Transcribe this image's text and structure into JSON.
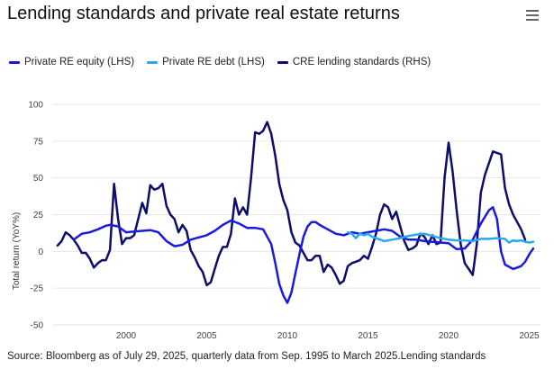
{
  "header": {
    "title": "Lending standards and private real estate returns",
    "menu_icon": "hamburger-menu-icon"
  },
  "legend": [
    {
      "label": "Private RE equity (LHS)",
      "color": "#1a1adb"
    },
    {
      "label": "Private RE debt (LHS)",
      "color": "#2aa8f0"
    },
    {
      "label": "CRE lending standards (RHS)",
      "color": "#0d0d6b"
    }
  ],
  "footer": {
    "source": "Source: Bloomberg as of July 29, 2025, quarterly data from Sep. 1995 to March 2025.Lending standards"
  },
  "chart_data": {
    "type": "line",
    "title": "Lending standards and private real estate returns",
    "xlabel": "",
    "ylabel": "Total return (YoY%)",
    "ylim": [
      -50,
      100
    ],
    "xlim": [
      1995.5,
      2025.5
    ],
    "yticks": [
      "100",
      "75",
      "50",
      "25",
      "0",
      "-25",
      "-50"
    ],
    "ytick_values": [
      100,
      75,
      50,
      25,
      0,
      -25,
      -50
    ],
    "xticks": [
      "2000",
      "2005",
      "2010",
      "2015",
      "2020",
      "2025"
    ],
    "xtick_values": [
      2000,
      2005,
      2010,
      2015,
      2020,
      2025
    ],
    "grid": true,
    "legend_position": "top-left",
    "series": [
      {
        "name": "Private RE equity (LHS)",
        "color": "#1a1adb",
        "points": [
          [
            1996.75,
            8
          ],
          [
            1997.0,
            10
          ],
          [
            1997.25,
            12
          ],
          [
            1997.75,
            13
          ],
          [
            1998.25,
            15
          ],
          [
            1998.75,
            17.5
          ],
          [
            1999.0,
            18
          ],
          [
            1999.5,
            17
          ],
          [
            2000.0,
            13
          ],
          [
            2000.5,
            13.5
          ],
          [
            2001.0,
            14
          ],
          [
            2001.5,
            14.5
          ],
          [
            2002.0,
            13
          ],
          [
            2002.5,
            7
          ],
          [
            2003.0,
            3.5
          ],
          [
            2003.5,
            4.5
          ],
          [
            2004.0,
            8
          ],
          [
            2004.5,
            9.5
          ],
          [
            2005.0,
            11
          ],
          [
            2005.5,
            14
          ],
          [
            2006.0,
            18
          ],
          [
            2006.5,
            21
          ],
          [
            2007.0,
            19
          ],
          [
            2007.5,
            16
          ],
          [
            2008.0,
            16
          ],
          [
            2008.5,
            15
          ],
          [
            2009.0,
            5
          ],
          [
            2009.25,
            -8
          ],
          [
            2009.5,
            -22
          ],
          [
            2009.75,
            -30
          ],
          [
            2010.0,
            -35
          ],
          [
            2010.25,
            -28
          ],
          [
            2010.5,
            -15
          ],
          [
            2010.75,
            -2
          ],
          [
            2011.0,
            10
          ],
          [
            2011.25,
            17
          ],
          [
            2011.5,
            20
          ],
          [
            2011.75,
            20
          ],
          [
            2012.0,
            18
          ],
          [
            2012.5,
            15
          ],
          [
            2013.0,
            12
          ],
          [
            2013.5,
            11
          ],
          [
            2014.0,
            13
          ],
          [
            2014.5,
            12
          ],
          [
            2015.0,
            13
          ],
          [
            2015.5,
            14
          ],
          [
            2016.0,
            15
          ],
          [
            2016.5,
            14
          ],
          [
            2017.0,
            10
          ],
          [
            2017.5,
            8
          ],
          [
            2018.0,
            8
          ],
          [
            2018.5,
            7
          ],
          [
            2019.0,
            6.5
          ],
          [
            2019.5,
            6
          ],
          [
            2020.0,
            5.5
          ],
          [
            2020.5,
            1.5
          ],
          [
            2021.0,
            2
          ],
          [
            2021.5,
            8
          ],
          [
            2022.0,
            19
          ],
          [
            2022.5,
            28
          ],
          [
            2022.75,
            30
          ],
          [
            2023.0,
            22
          ],
          [
            2023.25,
            0
          ],
          [
            2023.5,
            -9
          ],
          [
            2024.0,
            -12
          ],
          [
            2024.5,
            -10
          ],
          [
            2024.75,
            -7
          ],
          [
            2025.0,
            -2
          ],
          [
            2025.25,
            2
          ]
        ]
      },
      {
        "name": "Private RE debt (LHS)",
        "color": "#2aa8f0",
        "points": [
          [
            2013.75,
            13
          ],
          [
            2014.0,
            12
          ],
          [
            2014.25,
            9
          ],
          [
            2014.5,
            12
          ],
          [
            2014.75,
            11
          ],
          [
            2015.0,
            12
          ],
          [
            2015.25,
            10
          ],
          [
            2015.5,
            9
          ],
          [
            2016.0,
            7
          ],
          [
            2016.5,
            8
          ],
          [
            2017.0,
            9
          ],
          [
            2017.5,
            10.5
          ],
          [
            2018.0,
            11.5
          ],
          [
            2018.5,
            12
          ],
          [
            2019.0,
            10.5
          ],
          [
            2019.5,
            9
          ],
          [
            2020.0,
            8
          ],
          [
            2020.5,
            7.5
          ],
          [
            2021.0,
            7.5
          ],
          [
            2021.5,
            7
          ],
          [
            2022.0,
            8.5
          ],
          [
            2022.5,
            8.5
          ],
          [
            2023.0,
            9
          ],
          [
            2023.5,
            8.5
          ],
          [
            2023.75,
            6
          ],
          [
            2024.0,
            7.5
          ],
          [
            2024.25,
            7
          ],
          [
            2024.5,
            7.5
          ],
          [
            2024.75,
            6.5
          ],
          [
            2025.0,
            6
          ],
          [
            2025.25,
            6.5
          ]
        ]
      },
      {
        "name": "CRE lending standards (RHS)",
        "color": "#0d0d6b",
        "points": [
          [
            1995.75,
            4
          ],
          [
            1996.0,
            7
          ],
          [
            1996.25,
            13
          ],
          [
            1996.5,
            11
          ],
          [
            1996.75,
            8
          ],
          [
            1997.0,
            4
          ],
          [
            1997.25,
            -1
          ],
          [
            1997.5,
            -1
          ],
          [
            1997.75,
            -5
          ],
          [
            1998.0,
            -11
          ],
          [
            1998.25,
            -8
          ],
          [
            1998.5,
            -6
          ],
          [
            1998.75,
            -6
          ],
          [
            1999.0,
            1
          ],
          [
            1999.25,
            46
          ],
          [
            1999.5,
            22
          ],
          [
            1999.75,
            5
          ],
          [
            2000.0,
            9
          ],
          [
            2000.25,
            9
          ],
          [
            2000.5,
            11
          ],
          [
            2000.75,
            22
          ],
          [
            2001.0,
            33
          ],
          [
            2001.25,
            26
          ],
          [
            2001.5,
            45
          ],
          [
            2001.75,
            42
          ],
          [
            2002.0,
            43
          ],
          [
            2002.25,
            46
          ],
          [
            2002.5,
            31
          ],
          [
            2002.75,
            25
          ],
          [
            2003.0,
            22
          ],
          [
            2003.25,
            13
          ],
          [
            2003.5,
            18
          ],
          [
            2003.75,
            14
          ],
          [
            2004.0,
            1
          ],
          [
            2004.25,
            -4
          ],
          [
            2004.5,
            -10
          ],
          [
            2004.75,
            -14
          ],
          [
            2005.0,
            -23
          ],
          [
            2005.25,
            -21
          ],
          [
            2005.5,
            -12
          ],
          [
            2005.75,
            -3
          ],
          [
            2006.0,
            3
          ],
          [
            2006.25,
            3
          ],
          [
            2006.5,
            12
          ],
          [
            2006.75,
            36
          ],
          [
            2007.0,
            25
          ],
          [
            2007.25,
            30
          ],
          [
            2007.5,
            25
          ],
          [
            2007.75,
            50
          ],
          [
            2008.0,
            81
          ],
          [
            2008.25,
            80
          ],
          [
            2008.5,
            82
          ],
          [
            2008.75,
            88
          ],
          [
            2009.0,
            80
          ],
          [
            2009.25,
            65
          ],
          [
            2009.5,
            46
          ],
          [
            2009.75,
            35
          ],
          [
            2010.0,
            28
          ],
          [
            2010.25,
            13
          ],
          [
            2010.5,
            6
          ],
          [
            2010.75,
            4
          ],
          [
            2011.0,
            -1
          ],
          [
            2011.25,
            -6
          ],
          [
            2011.5,
            -6
          ],
          [
            2011.75,
            -3
          ],
          [
            2012.0,
            -3
          ],
          [
            2012.25,
            -14
          ],
          [
            2012.5,
            -9
          ],
          [
            2012.75,
            -11
          ],
          [
            2013.0,
            -16
          ],
          [
            2013.25,
            -22
          ],
          [
            2013.5,
            -20
          ],
          [
            2013.75,
            -10
          ],
          [
            2014.0,
            -8
          ],
          [
            2014.25,
            -7
          ],
          [
            2014.5,
            -6
          ],
          [
            2014.75,
            -3
          ],
          [
            2015.0,
            -5
          ],
          [
            2015.25,
            3
          ],
          [
            2015.5,
            12
          ],
          [
            2015.75,
            25
          ],
          [
            2016.0,
            32
          ],
          [
            2016.25,
            30
          ],
          [
            2016.5,
            22
          ],
          [
            2016.75,
            27
          ],
          [
            2017.0,
            17
          ],
          [
            2017.25,
            7
          ],
          [
            2017.5,
            1
          ],
          [
            2017.75,
            2
          ],
          [
            2018.0,
            4
          ],
          [
            2018.25,
            12
          ],
          [
            2018.5,
            10
          ],
          [
            2018.75,
            5
          ],
          [
            2019.0,
            11
          ],
          [
            2019.25,
            5
          ],
          [
            2019.5,
            6
          ],
          [
            2019.75,
            50
          ],
          [
            2020.0,
            74
          ],
          [
            2020.25,
            54
          ],
          [
            2020.5,
            28
          ],
          [
            2020.75,
            5
          ],
          [
            2021.0,
            -8
          ],
          [
            2021.25,
            -12
          ],
          [
            2021.5,
            -16
          ],
          [
            2021.75,
            5
          ],
          [
            2022.0,
            40
          ],
          [
            2022.25,
            52
          ],
          [
            2022.5,
            60
          ],
          [
            2022.75,
            68
          ],
          [
            2023.0,
            67
          ],
          [
            2023.25,
            66
          ],
          [
            2023.5,
            43
          ],
          [
            2023.75,
            32
          ],
          [
            2024.0,
            25
          ],
          [
            2024.25,
            20
          ],
          [
            2024.5,
            15
          ],
          [
            2024.75,
            8
          ]
        ]
      }
    ]
  }
}
